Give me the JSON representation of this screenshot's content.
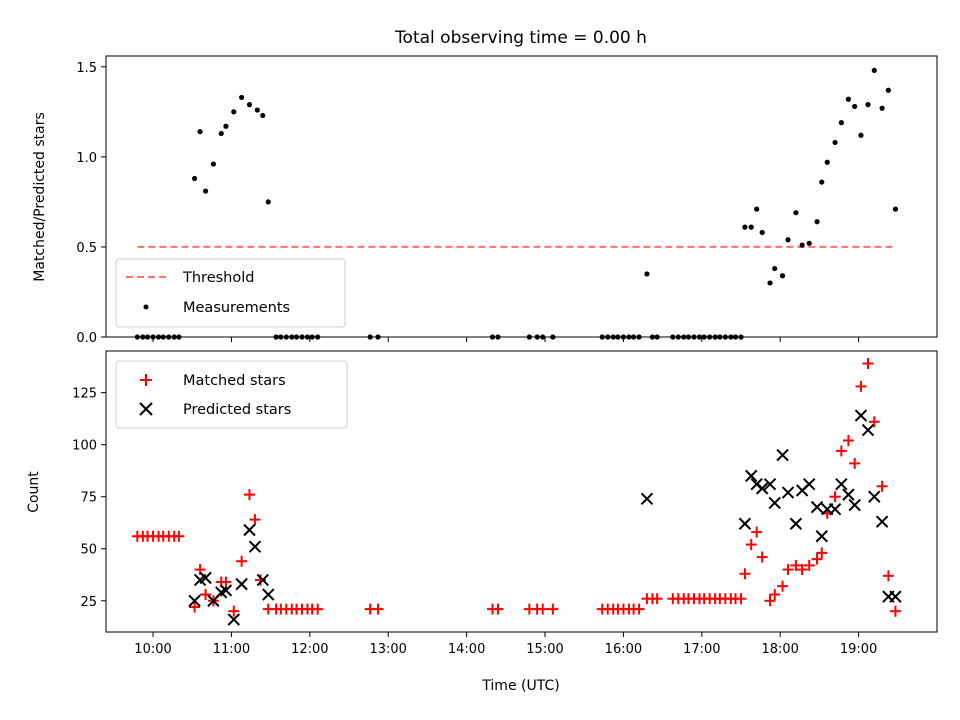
{
  "title": "Total observing time = 0.00 h",
  "colors": {
    "threshold": "#ff7070",
    "measurement": "#000000",
    "matched": "#ff0000",
    "predicted": "#000000"
  },
  "chart_data": [
    {
      "type": "scatter",
      "ylabel": "Matched/Predicted stars",
      "xlim": [
        9.4,
        20.0
      ],
      "ylim": [
        0,
        1.56
      ],
      "xticks": [
        10,
        11,
        12,
        13,
        14,
        15,
        16,
        17,
        18,
        19
      ],
      "yticks": [
        0.0,
        0.5,
        1.0,
        1.5
      ],
      "ytick_labels": [
        "0.0",
        "0.5",
        "1.0",
        "1.5"
      ],
      "legend_position": "lower-left",
      "threshold": {
        "name": "Threshold",
        "y": 0.5,
        "x_range": [
          9.8,
          19.47
        ],
        "style": "dashed-line"
      },
      "series": [
        {
          "name": "Measurements",
          "marker": "dot",
          "x": [
            9.8,
            9.87,
            9.93,
            10.0,
            10.07,
            10.13,
            10.2,
            10.27,
            10.33,
            10.53,
            10.6,
            10.67,
            10.77,
            10.87,
            10.93,
            11.03,
            11.13,
            11.23,
            11.33,
            11.4,
            11.47,
            11.57,
            11.63,
            11.7,
            11.77,
            11.83,
            11.9,
            11.97,
            12.03,
            12.1,
            12.77,
            12.87,
            14.33,
            14.4,
            14.8,
            14.9,
            14.97,
            15.1,
            15.73,
            15.8,
            15.87,
            15.93,
            16.0,
            16.07,
            16.13,
            16.2,
            16.3,
            16.37,
            16.43,
            16.63,
            16.7,
            16.77,
            16.83,
            16.9,
            16.97,
            17.03,
            17.1,
            17.17,
            17.23,
            17.3,
            17.37,
            17.43,
            17.5,
            17.55,
            17.63,
            17.7,
            17.77,
            17.87,
            17.93,
            18.03,
            18.1,
            18.2,
            18.28,
            18.37,
            18.47,
            18.53,
            18.6,
            18.7,
            18.78,
            18.87,
            18.95,
            19.03,
            19.12,
            19.2,
            19.3,
            19.38,
            19.47
          ],
          "y": [
            0,
            0,
            0,
            0,
            0,
            0,
            0,
            0,
            0,
            0.88,
            1.14,
            0.81,
            0.96,
            1.13,
            1.17,
            1.25,
            1.33,
            1.29,
            1.26,
            1.23,
            0.75,
            0,
            0,
            0,
            0,
            0,
            0,
            0,
            0,
            0,
            0,
            0,
            0,
            0,
            0,
            0,
            0,
            0,
            0,
            0,
            0,
            0,
            0,
            0,
            0,
            0,
            0.35,
            0,
            0,
            0,
            0,
            0,
            0,
            0,
            0,
            0,
            0,
            0,
            0,
            0,
            0,
            0,
            0,
            0.61,
            0.61,
            0.71,
            0.58,
            0.3,
            0.38,
            0.34,
            0.54,
            0.69,
            0.51,
            0.52,
            0.64,
            0.86,
            0.97,
            1.08,
            1.19,
            1.32,
            1.28,
            1.12,
            1.29,
            1.48,
            1.27,
            1.37,
            0.71
          ]
        }
      ]
    },
    {
      "type": "scatter",
      "xlabel": "Time (UTC)",
      "ylabel": "Count",
      "xlim": [
        9.4,
        20.0
      ],
      "ylim": [
        10,
        145
      ],
      "xticks": [
        10,
        11,
        12,
        13,
        14,
        15,
        16,
        17,
        18,
        19
      ],
      "xtick_labels": [
        "10:00",
        "11:00",
        "12:00",
        "13:00",
        "14:00",
        "15:00",
        "16:00",
        "17:00",
        "18:00",
        "19:00"
      ],
      "yticks": [
        25,
        50,
        75,
        100,
        125
      ],
      "ytick_labels": [
        "25",
        "50",
        "75",
        "100",
        "125"
      ],
      "legend_position": "upper-left",
      "series": [
        {
          "name": "Matched stars",
          "marker": "plus",
          "x": [
            9.8,
            9.87,
            9.93,
            10.0,
            10.07,
            10.13,
            10.2,
            10.27,
            10.33,
            10.53,
            10.6,
            10.67,
            10.77,
            10.87,
            10.93,
            11.03,
            11.13,
            11.23,
            11.3,
            11.37,
            11.47,
            11.57,
            11.63,
            11.7,
            11.77,
            11.83,
            11.9,
            11.97,
            12.03,
            12.1,
            12.77,
            12.87,
            14.33,
            14.4,
            14.8,
            14.9,
            14.97,
            15.1,
            15.73,
            15.8,
            15.87,
            15.93,
            16.0,
            16.07,
            16.13,
            16.2,
            16.3,
            16.37,
            16.43,
            16.63,
            16.7,
            16.77,
            16.83,
            16.9,
            16.97,
            17.03,
            17.1,
            17.17,
            17.23,
            17.3,
            17.37,
            17.43,
            17.5,
            17.55,
            17.63,
            17.7,
            17.77,
            17.87,
            17.93,
            18.03,
            18.1,
            18.2,
            18.28,
            18.37,
            18.47,
            18.53,
            18.6,
            18.7,
            18.78,
            18.87,
            18.95,
            19.03,
            19.12,
            19.2,
            19.3,
            19.38,
            19.47
          ],
          "y": [
            56,
            56,
            56,
            56,
            56,
            56,
            56,
            56,
            56,
            22,
            40,
            28,
            25,
            34,
            34,
            20,
            44,
            76,
            64,
            35,
            21,
            21,
            21,
            21,
            21,
            21,
            21,
            21,
            21,
            21,
            21,
            21,
            21,
            21,
            21,
            21,
            21,
            21,
            21,
            21,
            21,
            21,
            21,
            21,
            21,
            21,
            26,
            26,
            26,
            26,
            26,
            26,
            26,
            26,
            26,
            26,
            26,
            26,
            26,
            26,
            26,
            26,
            26,
            38,
            52,
            58,
            46,
            25,
            28,
            32,
            40,
            42,
            40,
            42,
            45,
            48,
            67,
            75,
            97,
            102,
            91,
            128,
            139,
            111,
            80,
            37,
            20
          ]
        },
        {
          "name": "Predicted stars",
          "marker": "x",
          "x": [
            10.53,
            10.6,
            10.67,
            10.77,
            10.87,
            10.93,
            11.03,
            11.13,
            11.23,
            11.3,
            11.4,
            11.47,
            16.3,
            17.55,
            17.63,
            17.7,
            17.77,
            17.87,
            17.93,
            18.03,
            18.1,
            18.2,
            18.28,
            18.37,
            18.47,
            18.53,
            18.6,
            18.7,
            18.78,
            18.87,
            18.95,
            19.03,
            19.12,
            19.2,
            19.3,
            19.38,
            19.47
          ],
          "y": [
            25,
            35,
            36,
            25,
            29,
            30,
            16,
            33,
            59,
            51,
            35,
            28,
            74,
            62,
            85,
            81,
            79,
            81,
            72,
            95,
            77,
            62,
            78,
            81,
            70,
            56,
            69,
            69,
            81,
            76,
            71,
            114,
            107,
            75,
            63,
            27,
            27
          ]
        }
      ]
    }
  ]
}
